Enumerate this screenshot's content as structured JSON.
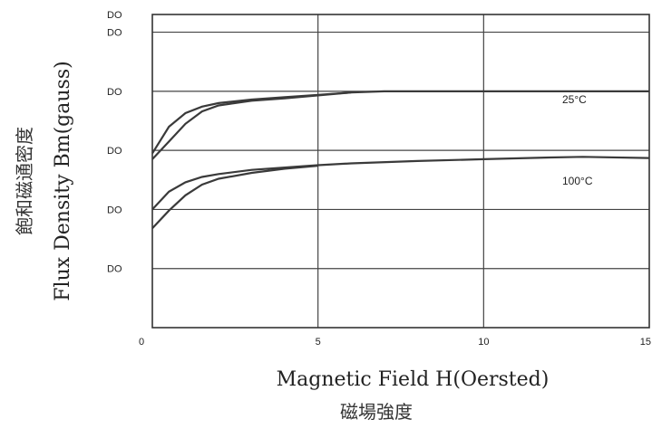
{
  "chart_data": {
    "type": "line",
    "xlabel": "Magnetic Field H(Oersted)",
    "xlabel_cn": "磁場強度",
    "ylabel": "Flux Density Bm(gauss)",
    "ylabel_cn": "飽和磁通密度",
    "xlim": [
      0,
      15
    ],
    "x_ticks": [
      "0",
      "5",
      "10",
      "15"
    ],
    "y_ticks": [
      "DO",
      "DO",
      "DO",
      "DO",
      "DO"
    ],
    "ylim": [
      0,
      5.3
    ],
    "y_tick_values": [
      1,
      2,
      3,
      4,
      5
    ],
    "grid": true,
    "series": [
      {
        "name": "25°C",
        "upper": {
          "x": [
            0,
            0.5,
            1,
            1.5,
            2,
            3,
            4,
            5,
            6,
            7,
            8,
            10,
            12,
            15
          ],
          "y": [
            2.95,
            3.4,
            3.63,
            3.74,
            3.8,
            3.86,
            3.9,
            3.94,
            3.98,
            4.0,
            4.0,
            4.0,
            4.0,
            4.0
          ]
        },
        "lower": {
          "x": [
            0,
            0.5,
            1,
            1.5,
            2,
            3,
            4,
            5,
            6
          ],
          "y": [
            2.85,
            3.15,
            3.45,
            3.66,
            3.76,
            3.84,
            3.88,
            3.93,
            3.98
          ]
        }
      },
      {
        "name": "100°C",
        "upper": {
          "x": [
            0,
            0.5,
            1,
            1.5,
            2,
            3,
            4,
            5,
            6,
            8,
            10,
            12,
            13,
            15
          ],
          "y": [
            2.0,
            2.3,
            2.46,
            2.55,
            2.6,
            2.67,
            2.71,
            2.75,
            2.78,
            2.82,
            2.85,
            2.88,
            2.89,
            2.87
          ]
        },
        "lower": {
          "x": [
            0,
            0.5,
            1,
            1.5,
            2,
            3,
            4,
            5
          ],
          "y": [
            1.68,
            1.98,
            2.24,
            2.42,
            2.52,
            2.62,
            2.69,
            2.74
          ]
        }
      }
    ]
  }
}
